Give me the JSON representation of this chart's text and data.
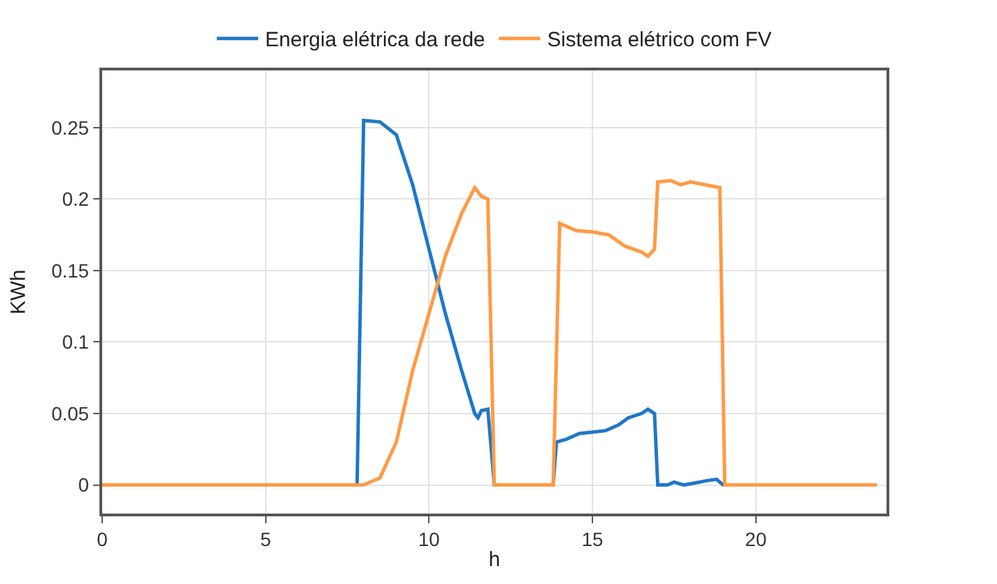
{
  "chart_data": {
    "type": "line",
    "xlabel": "h",
    "ylabel": "KWh",
    "xlim": [
      0,
      24
    ],
    "ylim": [
      -0.02,
      0.29
    ],
    "xticks": [
      0,
      5,
      10,
      15,
      20
    ],
    "yticks": [
      0,
      0.05,
      0.1,
      0.15,
      0.2,
      0.25
    ],
    "grid": true,
    "legend": "top",
    "marker": "none",
    "line_style": "solid",
    "series": [
      {
        "name": "Energia elétrica da rede",
        "color": "#1f77c8",
        "x": [
          0,
          7.8,
          8.0,
          8.5,
          9.0,
          9.5,
          10.0,
          10.5,
          11.0,
          11.4,
          11.5,
          11.6,
          11.8,
          12.0,
          13.8,
          13.9,
          14.2,
          14.6,
          15.0,
          15.4,
          15.8,
          16.1,
          16.5,
          16.7,
          16.9,
          17.0,
          17.3,
          17.5,
          17.8,
          18.5,
          18.8,
          19.0,
          23.7
        ],
        "values": [
          0,
          0,
          0.255,
          0.254,
          0.245,
          0.21,
          0.165,
          0.12,
          0.08,
          0.05,
          0.047,
          0.052,
          0.053,
          0,
          0,
          0.03,
          0.032,
          0.036,
          0.037,
          0.038,
          0.042,
          0.047,
          0.05,
          0.053,
          0.05,
          0,
          0,
          0.002,
          0,
          0.003,
          0.004,
          0,
          0
        ]
      },
      {
        "name": "Sistema elétrico com FV",
        "color": "#ff9a45",
        "x": [
          0,
          8.0,
          8.5,
          9.0,
          9.5,
          10.0,
          10.5,
          11.0,
          11.4,
          11.6,
          11.8,
          12.0,
          13.8,
          14.0,
          14.5,
          15.0,
          15.5,
          16.0,
          16.5,
          16.7,
          16.9,
          17.0,
          17.4,
          17.7,
          18.0,
          18.9,
          19.05,
          23.7
        ],
        "values": [
          0,
          0,
          0.005,
          0.03,
          0.08,
          0.12,
          0.16,
          0.19,
          0.208,
          0.202,
          0.2,
          0,
          0,
          0.183,
          0.178,
          0.177,
          0.175,
          0.167,
          0.163,
          0.16,
          0.165,
          0.212,
          0.213,
          0.21,
          0.212,
          0.208,
          0,
          0
        ]
      }
    ]
  }
}
